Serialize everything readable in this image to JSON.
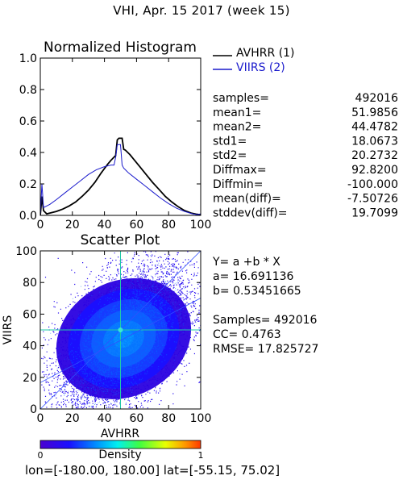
{
  "page": {
    "title": "VHI,  Apr. 15 2017 (week 15)",
    "region_label": "lon=[-180.00, 180.00] lat=[-55.15, 75.02]"
  },
  "colors": {
    "avhrr": "#000000",
    "viirs": "#1a1acc"
  },
  "stats": [
    {
      "label": "samples=",
      "value": "492016"
    },
    {
      "label": "mean1=",
      "value": "51.9856"
    },
    {
      "label": "mean2=",
      "value": "44.4782"
    },
    {
      "label": "std1=",
      "value": "18.0673"
    },
    {
      "label": "std2=",
      "value": "20.2732"
    },
    {
      "label": "Diffmax=",
      "value": "92.8200"
    },
    {
      "label": "Diffmin=",
      "value": "-100.000"
    },
    {
      "label": "mean(diff)=",
      "value": "-7.50726"
    },
    {
      "label": "stddev(diff)=",
      "value": "19.7099"
    }
  ],
  "regression": {
    "equation": "Y= a +b * X",
    "a": "a= 16.691136",
    "b": "b= 0.53451665",
    "samples": "Samples= 492016",
    "cc": "CC=  0.4763",
    "rmse": "RMSE= 17.825727"
  },
  "colorbar": {
    "label": "Density",
    "min": "0",
    "max": "1"
  },
  "chart_data": [
    {
      "type": "line",
      "title": "Normalized Histogram",
      "xlim": [
        0,
        100
      ],
      "ylim": [
        0,
        1.0
      ],
      "xticks": [
        "0",
        "20",
        "40",
        "60",
        "80",
        "100"
      ],
      "yticks": [
        "0.0",
        "0.2",
        "0.4",
        "0.6",
        "0.8",
        "1.0"
      ],
      "series": [
        {
          "name": "AVHRR (1)",
          "color": "#000000",
          "x": [
            0,
            1,
            2,
            4,
            6,
            8,
            10,
            14,
            18,
            22,
            26,
            30,
            34,
            38,
            42,
            44,
            46,
            47,
            48,
            49,
            50,
            51,
            52,
            53,
            54,
            56,
            58,
            62,
            66,
            70,
            74,
            78,
            82,
            86,
            90,
            94,
            97,
            99,
            100
          ],
          "y": [
            0.0,
            0.12,
            0.03,
            0.01,
            0.015,
            0.02,
            0.025,
            0.04,
            0.06,
            0.085,
            0.12,
            0.16,
            0.21,
            0.27,
            0.325,
            0.35,
            0.37,
            0.38,
            0.48,
            0.49,
            0.49,
            0.49,
            0.42,
            0.415,
            0.405,
            0.385,
            0.36,
            0.31,
            0.26,
            0.21,
            0.165,
            0.12,
            0.085,
            0.055,
            0.03,
            0.015,
            0.008,
            0.005,
            0.0
          ]
        },
        {
          "name": "VIIRS (2)",
          "color": "#1a1acc",
          "x": [
            0,
            1,
            2,
            4,
            6,
            10,
            15,
            20,
            25,
            30,
            35,
            40,
            44,
            46,
            47,
            48,
            49,
            50,
            51,
            52,
            53,
            55,
            60,
            65,
            70,
            75,
            80,
            85,
            90,
            95,
            98,
            100
          ],
          "y": [
            0.0,
            0.2,
            0.05,
            0.06,
            0.07,
            0.1,
            0.14,
            0.18,
            0.22,
            0.26,
            0.29,
            0.31,
            0.32,
            0.32,
            0.37,
            0.45,
            0.45,
            0.45,
            0.32,
            0.3,
            0.29,
            0.27,
            0.23,
            0.19,
            0.15,
            0.11,
            0.075,
            0.045,
            0.025,
            0.01,
            0.005,
            0.01
          ]
        }
      ]
    },
    {
      "type": "heatmap",
      "title": "Scatter Plot",
      "xlabel": "AVHRR",
      "ylabel": "VIIRS",
      "xlim": [
        0,
        100
      ],
      "ylim": [
        0,
        100
      ],
      "xticks": [
        "0",
        "20",
        "40",
        "60",
        "80",
        "100"
      ],
      "yticks": [
        "0",
        "20",
        "40",
        "60",
        "80",
        "100"
      ],
      "reference_lines": {
        "x": 50,
        "y": 50
      },
      "fit": {
        "intercept": 16.691136,
        "slope": 0.53451665
      },
      "density_center": [
        51.99,
        44.48
      ],
      "density_spread": [
        18.07,
        20.27
      ],
      "correlation": 0.4763
    }
  ]
}
